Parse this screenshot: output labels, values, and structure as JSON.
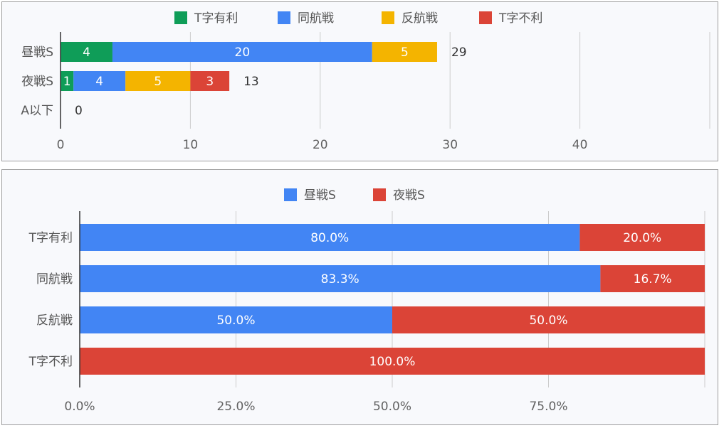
{
  "chart_data": [
    {
      "type": "bar",
      "orientation": "horizontal",
      "stacked": true,
      "categories": [
        "昼戦S",
        "夜戦S",
        "A以下"
      ],
      "series": [
        {
          "name": "T字有利",
          "color": "#0f9d58",
          "values": [
            4,
            1,
            0
          ]
        },
        {
          "name": "同航戦",
          "color": "#4285f4",
          "values": [
            20,
            4,
            0
          ]
        },
        {
          "name": "反航戦",
          "color": "#f4b400",
          "values": [
            5,
            5,
            0
          ]
        },
        {
          "name": "T字不利",
          "color": "#db4437",
          "values": [
            0,
            3,
            0
          ]
        }
      ],
      "totals": [
        29,
        13,
        0
      ],
      "xlim": [
        0,
        50
      ],
      "xticks": [
        0,
        10,
        20,
        30,
        40
      ],
      "xtick_labels": [
        "0",
        "10",
        "20",
        "30",
        "40"
      ],
      "grid": true,
      "legend": "top"
    },
    {
      "type": "bar",
      "orientation": "horizontal",
      "stacked": true,
      "percent": true,
      "categories": [
        "T字有利",
        "同航戦",
        "反航戦",
        "T字不利"
      ],
      "series": [
        {
          "name": "昼戦S",
          "color": "#4285f4",
          "values": [
            80.0,
            83.3,
            50.0,
            0
          ],
          "labels": [
            "80.0%",
            "83.3%",
            "50.0%",
            ""
          ]
        },
        {
          "name": "夜戦S",
          "color": "#db4437",
          "values": [
            20.0,
            16.7,
            50.0,
            100.0
          ],
          "labels": [
            "20.0%",
            "16.7%",
            "50.0%",
            "100.0%"
          ]
        }
      ],
      "xlim": [
        0,
        100
      ],
      "xticks": [
        0,
        25,
        50,
        75
      ],
      "xtick_labels": [
        "0.0%",
        "25.0%",
        "50.0%",
        "75.0%"
      ],
      "grid": true,
      "legend": "top"
    }
  ]
}
